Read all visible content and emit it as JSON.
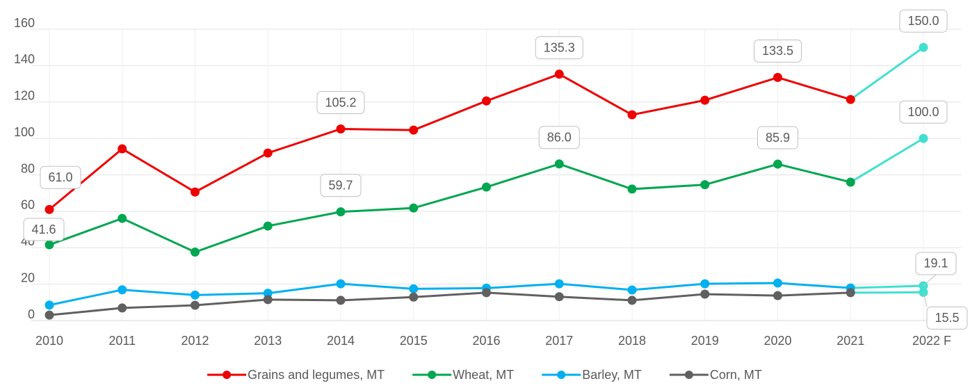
{
  "chart_data": {
    "type": "line",
    "categories": [
      "2010",
      "2011",
      "2012",
      "2013",
      "2014",
      "2015",
      "2016",
      "2017",
      "2018",
      "2019",
      "2020",
      "2021",
      "2022 F"
    ],
    "ylim": [
      0,
      160
    ],
    "yticks": [
      0,
      20,
      40,
      60,
      80,
      100,
      120,
      140,
      160
    ],
    "grid": true,
    "forecast_color": "#40e0d0",
    "series": [
      {
        "name": "Grains and legumes, MT",
        "color": "#ee0000",
        "values": [
          61.0,
          94.3,
          70.6,
          92.0,
          105.2,
          104.6,
          120.6,
          135.3,
          113.0,
          121.0,
          133.5,
          121.4,
          150.0
        ],
        "value_labels": [
          "61.0",
          null,
          null,
          null,
          "105.2",
          null,
          null,
          "135.3",
          null,
          null,
          "133.5",
          null,
          "150.0"
        ]
      },
      {
        "name": "Wheat, MT",
        "color": "#00a650",
        "values": [
          41.6,
          56.1,
          37.6,
          51.9,
          59.7,
          61.8,
          73.3,
          86.0,
          72.2,
          74.6,
          85.9,
          76.0,
          100.0
        ],
        "value_labels": [
          "41.6",
          null,
          null,
          null,
          "59.7",
          null,
          null,
          "86.0",
          null,
          null,
          "85.9",
          null,
          "100.0"
        ]
      },
      {
        "name": "Barley, MT",
        "color": "#00b0f0",
        "values": [
          8.5,
          16.9,
          14.0,
          15.0,
          20.2,
          17.4,
          17.8,
          20.2,
          16.8,
          20.2,
          20.6,
          17.9,
          19.1
        ],
        "value_labels": [
          null,
          null,
          null,
          null,
          null,
          null,
          null,
          null,
          null,
          null,
          null,
          null,
          "19.1"
        ]
      },
      {
        "name": "Corn, MT",
        "color": "#606060",
        "values": [
          3.0,
          6.9,
          8.4,
          11.5,
          11.1,
          12.9,
          15.3,
          13.1,
          11.1,
          14.5,
          13.7,
          15.3,
          15.5
        ],
        "value_labels": [
          null,
          null,
          null,
          null,
          null,
          null,
          null,
          null,
          null,
          null,
          null,
          null,
          "15.5"
        ]
      }
    ]
  }
}
